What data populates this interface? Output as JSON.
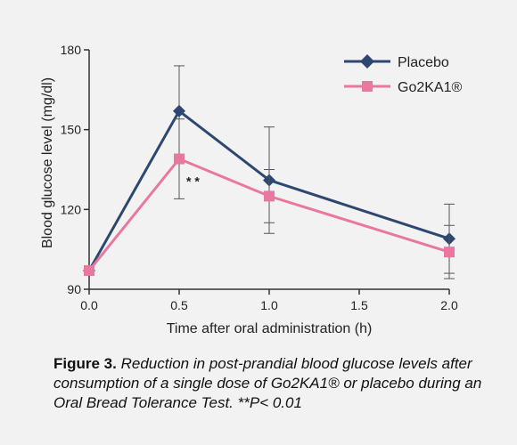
{
  "chart_data": {
    "type": "line",
    "xlabel": "Time after oral administration (h)",
    "ylabel": "Blood glucose level (mg/dl)",
    "xlim": [
      0,
      2
    ],
    "ylim": [
      90,
      180
    ],
    "x_ticks": [
      "0.0",
      "0.5",
      "1.0",
      "1.5",
      "2.0"
    ],
    "y_ticks": [
      "90",
      "120",
      "150",
      "180"
    ],
    "grid": false,
    "legend_position": "top-right",
    "series": [
      {
        "name": "Placebo",
        "color": "#2d4770",
        "marker": "diamond",
        "x": [
          0,
          0.5,
          1.0,
          2.0
        ],
        "y": [
          97,
          157,
          131,
          109
        ],
        "error": [
          0,
          17,
          20,
          13
        ]
      },
      {
        "name": "Go2KA1®",
        "color": "#e8789f",
        "marker": "square",
        "x": [
          0,
          0.5,
          1.0,
          2.0
        ],
        "y": [
          97,
          139,
          125,
          104
        ],
        "error": [
          0,
          15,
          10,
          10
        ]
      }
    ],
    "annotations": [
      {
        "text": "* *",
        "x": 0.5,
        "y": 129
      }
    ]
  },
  "caption": {
    "label": "Figure 3.",
    "text": " Reduction in post-prandial blood glucose levels after consumption of a single dose of Go2KA1® or placebo during an Oral Bread Tolerance Test. **P< 0.01"
  }
}
